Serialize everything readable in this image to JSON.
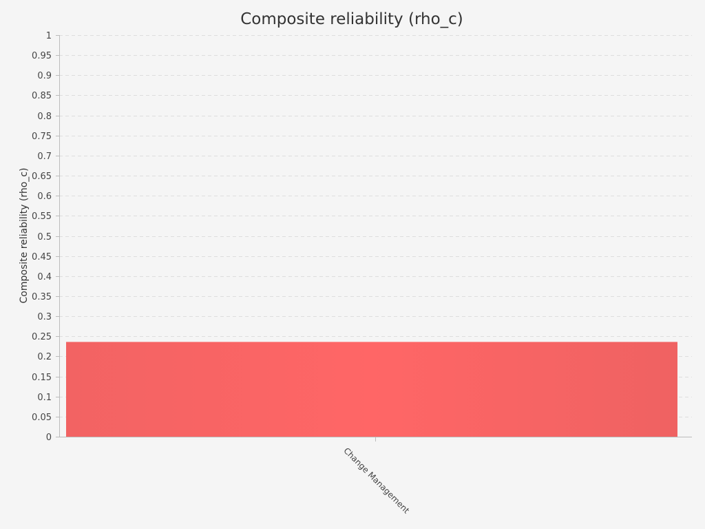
{
  "colors": {
    "background": "#f5f5f5",
    "bar": "#ff6666",
    "bar_edge": "#ee6060"
  },
  "chart_data": {
    "type": "bar",
    "title": "Composite reliability (rho_c)",
    "xlabel": "",
    "ylabel": "Composite reliability (rho_c)",
    "categories": [
      "Change Management"
    ],
    "values": [
      0.236
    ],
    "ylim": [
      0,
      1
    ],
    "yticks": [
      0,
      0.05,
      0.1,
      0.15,
      0.2,
      0.25,
      0.3,
      0.35,
      0.4,
      0.45,
      0.5,
      0.55,
      0.6,
      0.65,
      0.7,
      0.75,
      0.8,
      0.85,
      0.9,
      0.95,
      1
    ],
    "ytick_labels": [
      "0",
      "0.05",
      "0.1",
      "0.15",
      "0.2",
      "0.25",
      "0.3",
      "0.35",
      "0.4",
      "0.45",
      "0.5",
      "0.55",
      "0.6",
      "0.65",
      "0.7",
      "0.75",
      "0.8",
      "0.85",
      "0.9",
      "0.95",
      "1"
    ],
    "grid": true,
    "legend": "none"
  }
}
